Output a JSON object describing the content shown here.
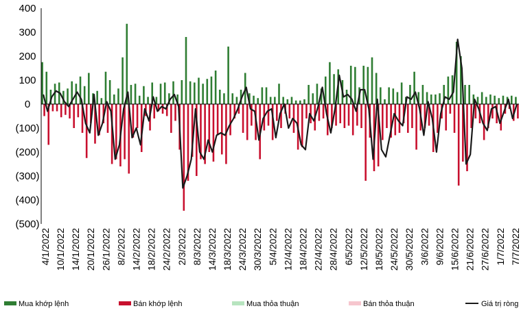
{
  "chart_data": {
    "type": "bar",
    "title": "",
    "xlabel": "",
    "ylabel": "",
    "ylim": [
      -500,
      400
    ],
    "yticks": [
      400,
      300,
      200,
      100,
      0,
      -100,
      -200,
      -300,
      -400,
      -500
    ],
    "ytick_labels": [
      "400",
      "300",
      "200",
      "100",
      "0",
      "(100)",
      "(200)",
      "(300)",
      "(400)",
      "(500)"
    ],
    "xtick_labels": [
      "4/1/2022",
      "10/1/2022",
      "14/1/2022",
      "20/1/2022",
      "26/1/2022",
      "8/2/2022",
      "14/2/2022",
      "18/2/2022",
      "24/2/2022",
      "2/3/2022",
      "8/3/2022",
      "14/3/2022",
      "18/3/2022",
      "24/3/2022",
      "30/3/2022",
      "5/4/2022",
      "12/4/2022",
      "18/4/2022",
      "22/4/2022",
      "28/4/2022",
      "6/5/2022",
      "12/5/2022",
      "18/5/2022",
      "24/5/2022",
      "30/5/2022",
      "3/6/2022",
      "9/6/2022",
      "15/6/2022",
      "21/6/2022",
      "27/6/2022",
      "1/7/2022",
      "7/7/2022"
    ],
    "legend": [
      "Mua khớp lệnh",
      "Bán khớp lệnh",
      "Mua thỏa thuận",
      "Bán thỏa thuận",
      "Giá trị ròng"
    ],
    "legend_position": "bottom",
    "colors": {
      "mua_khop": "#2e7d32",
      "ban_khop": "#c8102e",
      "mua_tt": "#b7e4bf",
      "ban_tt": "#f6c6ce",
      "net": "#1a1a1a"
    },
    "series": [
      {
        "name": "Mua khớp lệnh",
        "values": [
          175,
          135,
          60,
          85,
          90,
          55,
          65,
          95,
          85,
          115,
          75,
          130,
          45,
          55,
          25,
          135,
          100,
          40,
          65,
          195,
          335,
          80,
          85,
          35,
          75,
          30,
          90,
          30,
          85,
          90,
          45,
          95,
          40,
          100,
          280,
          95,
          90,
          110,
          85,
          105,
          115,
          140,
          60,
          45,
          240,
          45,
          30,
          60,
          130,
          45,
          35,
          25,
          70,
          70,
          30,
          30,
          85,
          30,
          20,
          30,
          15,
          15,
          20,
          80,
          45,
          85,
          65,
          115,
          175,
          125,
          145,
          100,
          60,
          160,
          155,
          70,
          160,
          155,
          195,
          130,
          70,
          20,
          70,
          65,
          50,
          90,
          30,
          80,
          135,
          50,
          80,
          50,
          40,
          40,
          45,
          80,
          115,
          120,
          260,
          200,
          80,
          80,
          40,
          30,
          50,
          30,
          40,
          35,
          25,
          35,
          30,
          35,
          30
        ]
      },
      {
        "name": "Bán khớp lệnh",
        "values": [
          -50,
          -170,
          -30,
          -30,
          -55,
          -45,
          -60,
          -100,
          -55,
          -120,
          -225,
          -80,
          -165,
          -130,
          -80,
          -120,
          -250,
          -230,
          -260,
          -230,
          -290,
          -140,
          -100,
          -200,
          -50,
          -110,
          -60,
          -30,
          -40,
          -50,
          -120,
          -70,
          -190,
          -445,
          -320,
          -220,
          -300,
          -230,
          -250,
          -200,
          -240,
          -130,
          -210,
          -250,
          -130,
          -60,
          -40,
          -120,
          -150,
          -90,
          -150,
          -230,
          -110,
          -90,
          -150,
          -70,
          -100,
          -40,
          -60,
          -120,
          -190,
          -180,
          -60,
          -80,
          -110,
          -70,
          -60,
          -130,
          -100,
          -90,
          -80,
          -100,
          -90,
          -130,
          -90,
          -100,
          -320,
          -140,
          -280,
          -260,
          -150,
          -100,
          -140,
          -130,
          -120,
          -80,
          -120,
          -100,
          -190,
          -110,
          -100,
          -90,
          -200,
          -120,
          -60,
          -110,
          -40,
          -120,
          -340,
          -240,
          -280,
          -100,
          -60,
          -80,
          -150,
          -100,
          -60,
          -80,
          -110,
          -40,
          -20,
          -70,
          -60
        ]
      },
      {
        "name": "Mua thỏa thuận",
        "values": [
          0,
          0,
          0,
          0,
          0,
          0,
          0,
          0,
          0,
          0,
          0,
          0,
          0,
          0,
          0,
          0,
          0,
          0,
          0,
          0,
          0,
          0,
          0,
          0,
          0,
          0,
          0,
          0,
          0,
          0,
          0,
          0,
          0,
          0,
          0,
          0,
          0,
          0,
          0,
          0,
          0,
          0,
          0,
          0,
          0,
          0,
          0,
          0,
          0,
          0,
          0,
          0,
          0,
          0,
          0,
          0,
          0,
          0,
          0,
          0,
          0,
          0,
          0,
          0,
          0,
          0,
          0,
          0,
          0,
          0,
          0,
          0,
          0,
          0,
          0,
          0,
          0,
          0,
          0,
          0,
          0,
          0,
          0,
          0,
          0,
          0,
          0,
          0,
          0,
          0,
          0,
          0,
          0,
          0,
          0,
          0,
          0,
          0,
          0,
          0,
          0,
          0,
          0,
          0,
          0,
          0,
          0,
          0,
          0,
          0,
          0,
          0,
          0
        ]
      },
      {
        "name": "Bán thỏa thuận",
        "values": [
          0,
          0,
          0,
          0,
          0,
          0,
          0,
          0,
          0,
          0,
          0,
          0,
          0,
          0,
          0,
          0,
          0,
          0,
          0,
          0,
          0,
          0,
          0,
          0,
          0,
          0,
          0,
          0,
          0,
          0,
          0,
          0,
          0,
          0,
          0,
          0,
          0,
          0,
          0,
          0,
          0,
          0,
          0,
          0,
          0,
          0,
          0,
          0,
          0,
          0,
          0,
          0,
          0,
          0,
          0,
          0,
          0,
          0,
          0,
          0,
          0,
          0,
          0,
          0,
          0,
          0,
          0,
          0,
          0,
          0,
          0,
          0,
          0,
          0,
          0,
          0,
          0,
          0,
          0,
          0,
          0,
          0,
          0,
          0,
          0,
          0,
          0,
          0,
          0,
          0,
          0,
          0,
          0,
          0,
          0,
          0,
          0,
          0,
          0,
          0,
          0,
          0,
          0,
          0,
          0,
          0,
          0,
          0,
          0,
          0,
          0,
          0,
          0
        ]
      },
      {
        "name": "Giá trị ròng",
        "values": [
          40,
          -30,
          30,
          55,
          45,
          10,
          -10,
          20,
          50,
          20,
          -80,
          -120,
          40,
          -130,
          -80,
          10,
          -30,
          -230,
          -170,
          -20,
          50,
          -140,
          -100,
          -170,
          -20,
          -70,
          30,
          -30,
          -10,
          -20,
          20,
          40,
          -10,
          -350,
          -300,
          -230,
          -20,
          -200,
          -230,
          -150,
          -200,
          -130,
          -120,
          -130,
          -90,
          -60,
          -20,
          30,
          70,
          -20,
          -30,
          -150,
          -60,
          -30,
          -20,
          -140,
          -40,
          0,
          -100,
          -60,
          -80,
          -170,
          -190,
          -40,
          -70,
          -10,
          70,
          -40,
          -120,
          -20,
          120,
          30,
          40,
          20,
          -30,
          60,
          60,
          -20,
          -230,
          20,
          -190,
          -220,
          -130,
          -40,
          -70,
          -90,
          30,
          20,
          50,
          -20,
          -130,
          10,
          -60,
          -200,
          -40,
          30,
          20,
          50,
          270,
          150,
          -250,
          -210,
          20,
          -20,
          -80,
          -110,
          -20,
          -10,
          -80,
          -30,
          20,
          -60,
          0
        ]
      }
    ]
  }
}
